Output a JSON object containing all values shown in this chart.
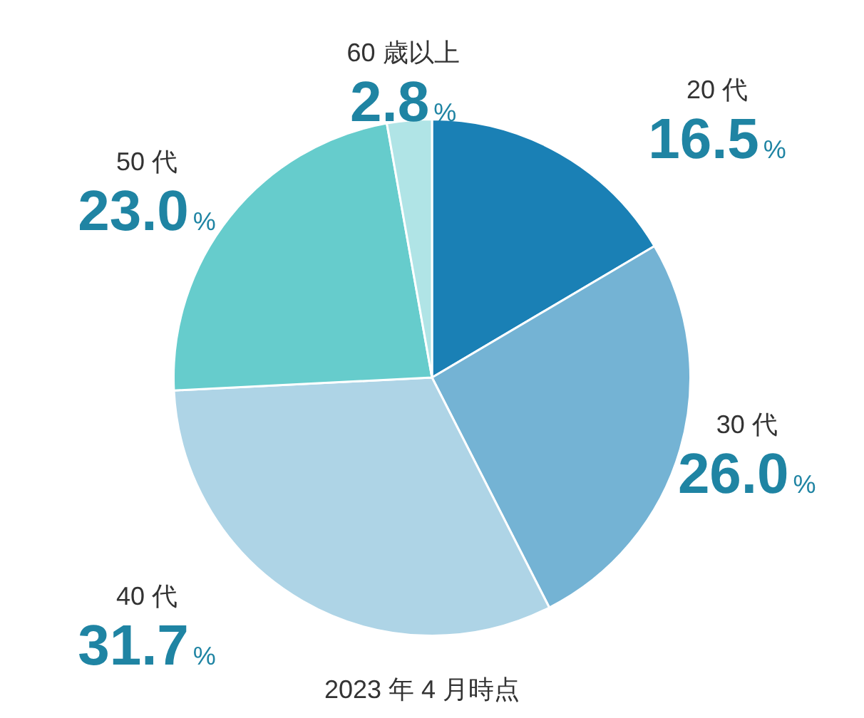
{
  "chart_data": {
    "type": "pie",
    "categories": [
      "20 代",
      "30 代",
      "40 代",
      "50 代",
      "60 歳以上"
    ],
    "values": [
      16.5,
      26.0,
      31.7,
      23.0,
      2.8
    ],
    "colors": [
      "#1a80b5",
      "#74b3d4",
      "#aed4e6",
      "#66cccc",
      "#b0e4e6"
    ],
    "value_labels": [
      "16.5%",
      "26.0%",
      "31.7%",
      "23.0%",
      "2.8%"
    ],
    "annotations": [
      "2023 年 4 月時点"
    ],
    "legend": false
  }
}
